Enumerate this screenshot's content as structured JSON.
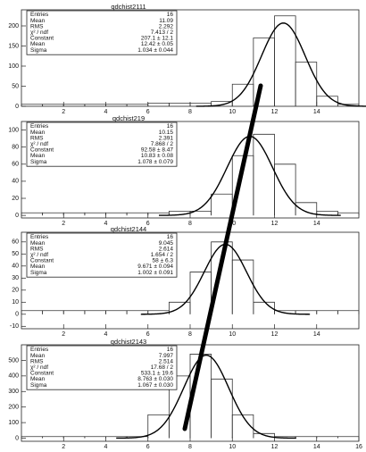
{
  "chart_data": [
    {
      "type": "histogram",
      "title": "qdchist2111",
      "stats": [
        [
          "Entries",
          "16"
        ],
        [
          "Mean",
          "11.09"
        ],
        [
          "RMS",
          "2.292"
        ],
        [
          "χ² / ndf",
          "7.413 / 2"
        ],
        [
          "Constant",
          "207.1 ± 12.1"
        ],
        [
          "Mean",
          "12.42 ± 0.05"
        ],
        [
          "Sigma",
          "1.034 ± 0.044"
        ]
      ],
      "fit": {
        "constant": 207.1,
        "mean": 12.42,
        "sigma": 1.034
      },
      "bins": [
        0,
        1,
        2,
        3,
        4,
        5,
        6,
        7,
        8,
        9,
        10,
        11,
        12,
        13,
        14,
        15,
        16
      ],
      "values": [
        5,
        5,
        5,
        5,
        5,
        5,
        8,
        8,
        8,
        12,
        55,
        170,
        225,
        110,
        25,
        5
      ],
      "xlim": [
        0,
        16
      ],
      "xticks": [
        2,
        4,
        6,
        8,
        10,
        12,
        14
      ],
      "ylim": [
        0,
        240
      ],
      "yticks": [
        0,
        50,
        100,
        150,
        200
      ]
    },
    {
      "type": "histogram",
      "title": "qdchist219",
      "stats": [
        [
          "Entries",
          "16"
        ],
        [
          "Mean",
          "10.15"
        ],
        [
          "RMS",
          "2.391"
        ],
        [
          "χ² / ndf",
          "7.868 / 2"
        ],
        [
          "Constant",
          "92.58 ± 8.47"
        ],
        [
          "Mean",
          "10.83 ± 0.08"
        ],
        [
          "Sigma",
          "1.078 ± 0.079"
        ]
      ],
      "fit": {
        "constant": 92.58,
        "mean": 10.83,
        "sigma": 1.078
      },
      "bins": [
        0,
        1,
        2,
        3,
        4,
        5,
        6,
        7,
        8,
        9,
        10,
        11,
        12,
        13,
        14,
        15,
        16
      ],
      "values": [
        3,
        3,
        3,
        3,
        3,
        3,
        3,
        5,
        5,
        25,
        70,
        95,
        60,
        15,
        5,
        3
      ],
      "xlim": [
        0,
        16
      ],
      "xticks": [
        2,
        4,
        6,
        8,
        10,
        12,
        14
      ],
      "ylim": [
        -3,
        110
      ],
      "yticks": [
        0,
        20,
        40,
        60,
        80,
        100
      ]
    },
    {
      "type": "histogram",
      "title": "qdchist2144",
      "stats": [
        [
          "Entries",
          "16"
        ],
        [
          "Mean",
          "9.045"
        ],
        [
          "RMS",
          "2.614"
        ],
        [
          "χ² / ndf",
          "1.654 / 2"
        ],
        [
          "Constant",
          "58 ± 6.3"
        ],
        [
          "Mean",
          "9.671 ± 0.094"
        ],
        [
          "Sigma",
          "1.002 ± 0.091"
        ]
      ],
      "fit": {
        "constant": 58,
        "mean": 9.671,
        "sigma": 1.002
      },
      "bins": [
        0,
        1,
        2,
        3,
        4,
        5,
        6,
        7,
        8,
        9,
        10,
        11,
        12,
        13,
        14,
        15,
        16
      ],
      "values": [
        3,
        3,
        3,
        3,
        3,
        3,
        3,
        10,
        35,
        60,
        45,
        10,
        3,
        3,
        3,
        3
      ],
      "xlim": [
        0,
        16
      ],
      "xticks": [
        2,
        4,
        6,
        8,
        10,
        12,
        14
      ],
      "ylim": [
        -12,
        68
      ],
      "yticks": [
        -10,
        0,
        10,
        20,
        30,
        40,
        50,
        60
      ]
    },
    {
      "type": "histogram",
      "title": "qdchist2143",
      "stats": [
        [
          "Entries",
          "16"
        ],
        [
          "Mean",
          "7.997"
        ],
        [
          "RMS",
          "2.514"
        ],
        [
          "χ² / ndf",
          "17.68 / 2"
        ],
        [
          "Constant",
          "533.1 ± 19.6"
        ],
        [
          "Mean",
          "8.763 ± 0.030"
        ],
        [
          "Sigma",
          "1.067 ± 0.030"
        ]
      ],
      "fit": {
        "constant": 533.1,
        "mean": 8.763,
        "sigma": 1.067
      },
      "bins": [
        0,
        1,
        2,
        3,
        4,
        5,
        6,
        7,
        8,
        9,
        10,
        11,
        12,
        13,
        14,
        15,
        16
      ],
      "values": [
        10,
        10,
        10,
        10,
        10,
        10,
        150,
        400,
        540,
        380,
        150,
        30,
        10,
        10,
        10,
        10
      ],
      "xlim": [
        0,
        16
      ],
      "xticks": [
        2,
        4,
        6,
        8,
        10,
        12,
        14,
        16
      ],
      "ylim": [
        -20,
        600
      ],
      "yticks": [
        0,
        100,
        200,
        300,
        400,
        500
      ]
    }
  ]
}
